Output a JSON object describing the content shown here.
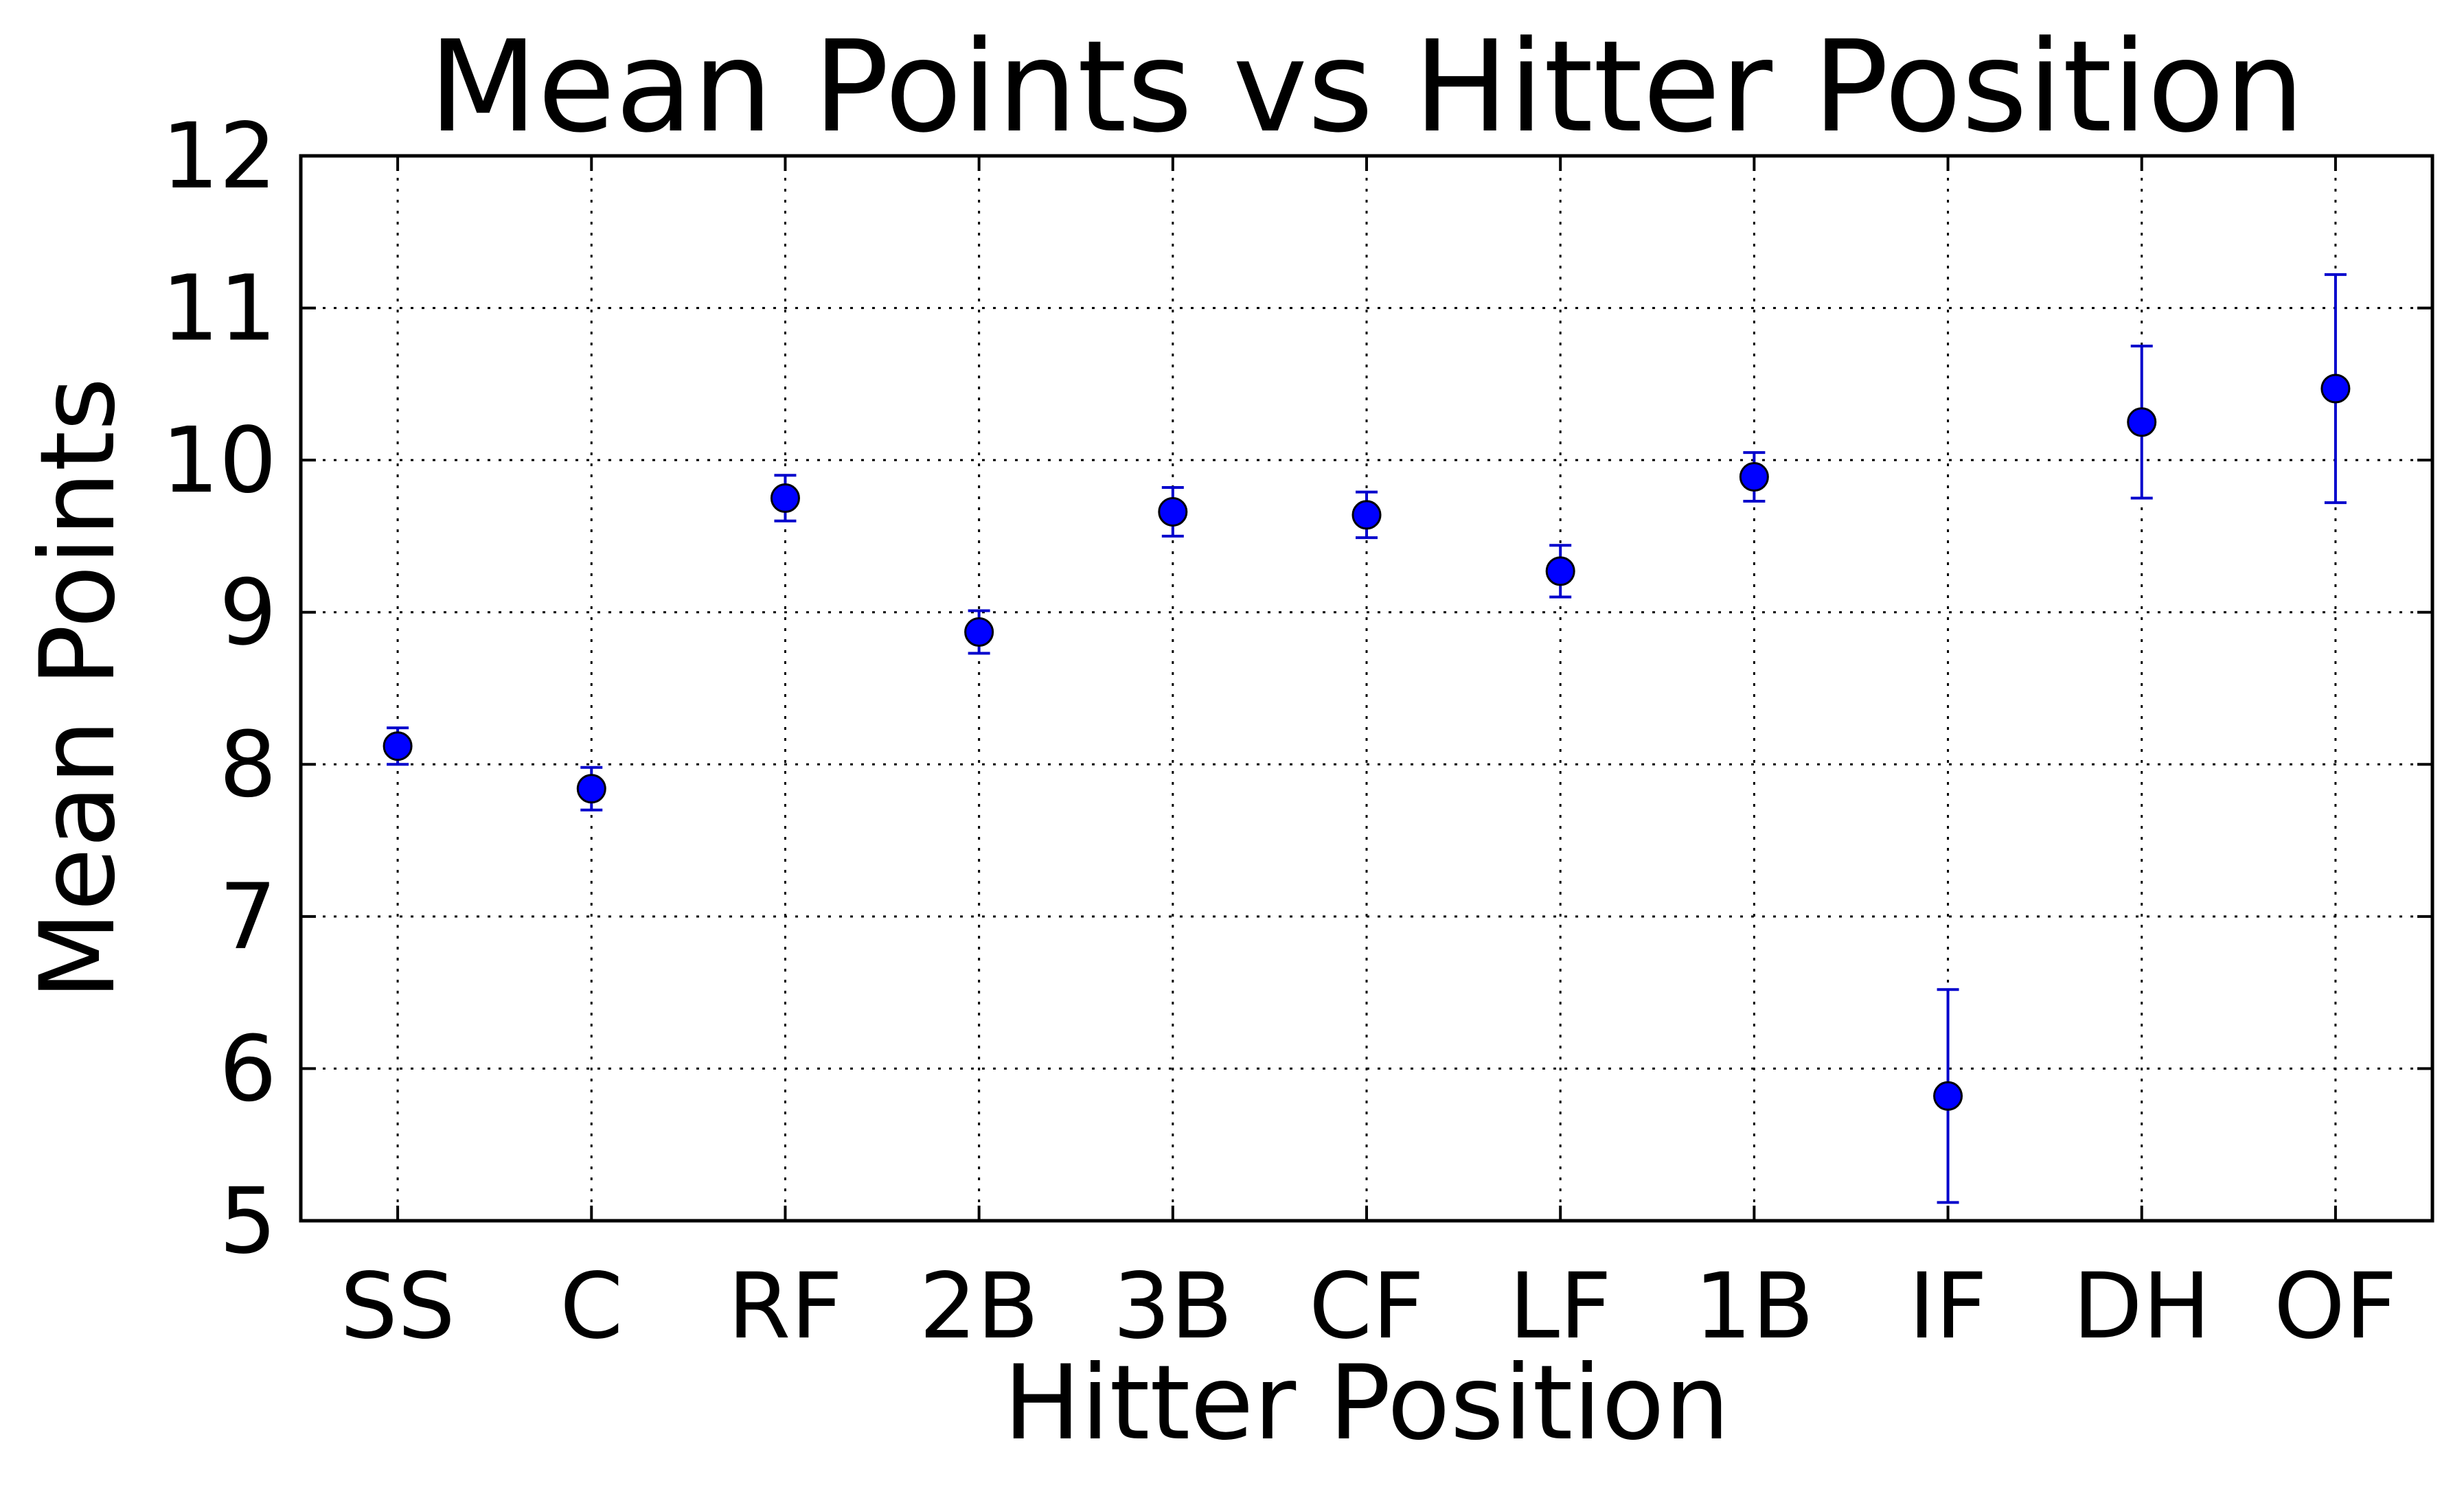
{
  "chart_data": {
    "type": "scatter",
    "title": "Mean Points vs Hitter Position",
    "xlabel": "Hitter Position",
    "ylabel": "Mean Points",
    "categories": [
      "SS",
      "C",
      "RF",
      "2B",
      "3B",
      "CF",
      "LF",
      "1B",
      "IF",
      "DH",
      "OF"
    ],
    "series": [
      {
        "values": [
          8.12,
          7.84,
          9.75,
          8.87,
          9.66,
          9.64,
          9.27,
          9.89,
          5.82,
          10.25,
          10.47
        ],
        "error_low": [
          8.0,
          7.7,
          9.6,
          8.73,
          9.5,
          9.49,
          9.1,
          9.73,
          5.12,
          9.75,
          9.72
        ],
        "error_high": [
          8.24,
          7.98,
          9.9,
          9.01,
          9.82,
          9.79,
          9.44,
          10.05,
          6.52,
          10.75,
          11.22
        ]
      }
    ],
    "ylim": [
      5,
      12
    ],
    "yticks": [
      5,
      6,
      7,
      8,
      9,
      10,
      11,
      12
    ],
    "grid": true,
    "marker_color": "#0000ff",
    "error_color": "#0000cc"
  }
}
